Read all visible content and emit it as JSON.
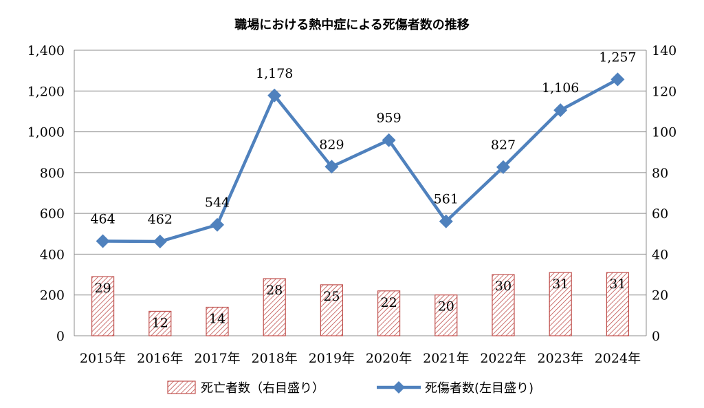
{
  "chart_data": {
    "type": "bar+line",
    "title": "職場における熱中症による死傷者数の推移",
    "categories": [
      "2015年",
      "2016年",
      "2017年",
      "2018年",
      "2019年",
      "2020年",
      "2021年",
      "2022年",
      "2023年",
      "2024年"
    ],
    "series": [
      {
        "name": "死亡者数（右目盛り）",
        "type": "bar",
        "axis": "right",
        "values": [
          29,
          12,
          14,
          28,
          25,
          22,
          20,
          30,
          31,
          31
        ],
        "color": "#c0504d"
      },
      {
        "name": "死傷者数(左目盛り)",
        "type": "line",
        "axis": "left",
        "values": [
          464,
          462,
          544,
          1178,
          829,
          959,
          561,
          827,
          1106,
          1257
        ],
        "value_labels": [
          "464",
          "462",
          "544",
          "1,178",
          "829",
          "959",
          "561",
          "827",
          "1,106",
          "1,257"
        ],
        "color": "#4f81bd"
      }
    ],
    "y_left": {
      "range": [
        0,
        1400
      ],
      "ticks": [
        "0",
        "200",
        "400",
        "600",
        "800",
        "1,000",
        "1,200",
        "1,400"
      ]
    },
    "y_right": {
      "range": [
        0,
        140
      ],
      "ticks": [
        "0",
        "20",
        "40",
        "60",
        "80",
        "100",
        "120",
        "140"
      ]
    },
    "grid": true,
    "legend_position": "bottom"
  }
}
